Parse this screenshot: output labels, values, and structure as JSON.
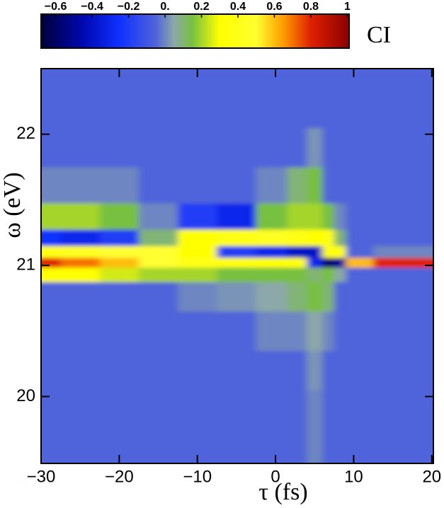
{
  "chart_data": {
    "type": "heatmap",
    "xlabel": "τ (fs)",
    "ylabel": "ω (eV)",
    "colorbar_label": "CI",
    "xlim": [
      -30,
      20.2
    ],
    "ylim": [
      19.49,
      22.5
    ],
    "xticks": [
      {
        "value": -30,
        "label": "−30"
      },
      {
        "value": -20,
        "label": "−20"
      },
      {
        "value": -10,
        "label": "−10"
      },
      0,
      10,
      20
    ],
    "yticks": [
      20,
      21,
      22
    ],
    "clim": [
      -0.68,
      1.01
    ],
    "cticks": [
      {
        "value": -0.6,
        "label": "−0.6"
      },
      {
        "value": -0.4,
        "label": "−0.4"
      },
      {
        "value": -0.2,
        "label": "−0.2"
      },
      {
        "value": 0,
        "label": "0."
      },
      0.2,
      0.4,
      0.6,
      0.8,
      1
    ],
    "colorscale": [
      [
        -0.68,
        "#00003a"
      ],
      [
        -0.45,
        "#0008b0"
      ],
      [
        -0.25,
        "#1030ff"
      ],
      [
        -0.05,
        "#5064da"
      ],
      [
        0.05,
        "#8ca8a8"
      ],
      [
        0.15,
        "#78c040"
      ],
      [
        0.3,
        "#ffff00"
      ],
      [
        0.5,
        "#ffff30"
      ],
      [
        0.65,
        "#ff9a00"
      ],
      [
        0.8,
        "#e02000"
      ],
      [
        1.01,
        "#8a0000"
      ]
    ],
    "x": [
      -30,
      -25,
      -20,
      -15,
      -10,
      -5,
      0,
      3,
      5,
      7,
      8,
      10,
      15,
      20
    ],
    "y": [
      19.6,
      19.9,
      20.2,
      20.5,
      20.8,
      20.95,
      21.02,
      21.1,
      21.2,
      21.35,
      21.6,
      21.9,
      22.2,
      22.45
    ],
    "z": [
      [
        -0.05,
        -0.05,
        -0.05,
        -0.05,
        -0.05,
        -0.05,
        -0.05,
        -0.05,
        0,
        -0.05,
        -0.05,
        -0.05,
        -0.05,
        -0.05
      ],
      [
        -0.05,
        -0.05,
        -0.05,
        -0.05,
        -0.05,
        -0.05,
        -0.05,
        -0.05,
        0,
        -0.05,
        -0.05,
        -0.05,
        -0.05,
        -0.05
      ],
      [
        -0.05,
        -0.05,
        -0.05,
        -0.05,
        -0.05,
        -0.05,
        -0.05,
        -0.05,
        0.02,
        -0.05,
        -0.05,
        -0.05,
        -0.05,
        -0.05
      ],
      [
        -0.05,
        -0.05,
        -0.05,
        -0.05,
        -0.05,
        -0.05,
        0,
        0,
        0.05,
        0,
        -0.05,
        -0.05,
        -0.05,
        -0.05
      ],
      [
        -0.05,
        -0.05,
        -0.05,
        -0.05,
        0,
        0.02,
        0.05,
        0.1,
        0.15,
        0.1,
        -0.05,
        -0.05,
        -0.05,
        -0.05
      ],
      [
        0.3,
        0.3,
        0.25,
        0.2,
        0.2,
        0.15,
        0.15,
        0.15,
        0.1,
        0.15,
        0.05,
        -0.05,
        -0.05,
        -0.05
      ],
      [
        0.8,
        0.7,
        0.6,
        0.5,
        0.4,
        0.35,
        0.3,
        0.35,
        -0.3,
        -0.6,
        -0.5,
        0.6,
        0.8,
        0.8
      ],
      [
        0.4,
        0.45,
        0.5,
        0.5,
        0.3,
        -0.2,
        -0.3,
        -0.4,
        -0.4,
        0.4,
        0.3,
        -0.05,
        0,
        0
      ],
      [
        -0.25,
        -0.3,
        -0.2,
        0.1,
        0.3,
        0.4,
        0.45,
        0.4,
        0.3,
        0.35,
        0.1,
        -0.05,
        -0.05,
        -0.05
      ],
      [
        0.2,
        0.2,
        0.15,
        0,
        -0.2,
        -0.3,
        0.15,
        0.2,
        0.2,
        0.15,
        0,
        -0.05,
        -0.05,
        -0.05
      ],
      [
        0,
        0,
        0,
        -0.05,
        -0.05,
        -0.05,
        0,
        0.1,
        0.15,
        -0.05,
        -0.05,
        -0.05,
        -0.05,
        -0.05
      ],
      [
        -0.05,
        -0.05,
        -0.05,
        -0.05,
        -0.05,
        -0.05,
        -0.05,
        -0.05,
        0.02,
        -0.05,
        -0.05,
        -0.05,
        -0.05,
        -0.05
      ],
      [
        -0.05,
        -0.05,
        -0.05,
        -0.05,
        -0.05,
        -0.05,
        -0.05,
        -0.05,
        -0.05,
        -0.05,
        -0.05,
        -0.05,
        -0.05,
        -0.05
      ],
      [
        -0.05,
        -0.05,
        -0.05,
        -0.05,
        -0.05,
        -0.05,
        -0.05,
        -0.05,
        -0.05,
        -0.05,
        -0.05,
        -0.05,
        -0.05,
        -0.05
      ]
    ]
  }
}
